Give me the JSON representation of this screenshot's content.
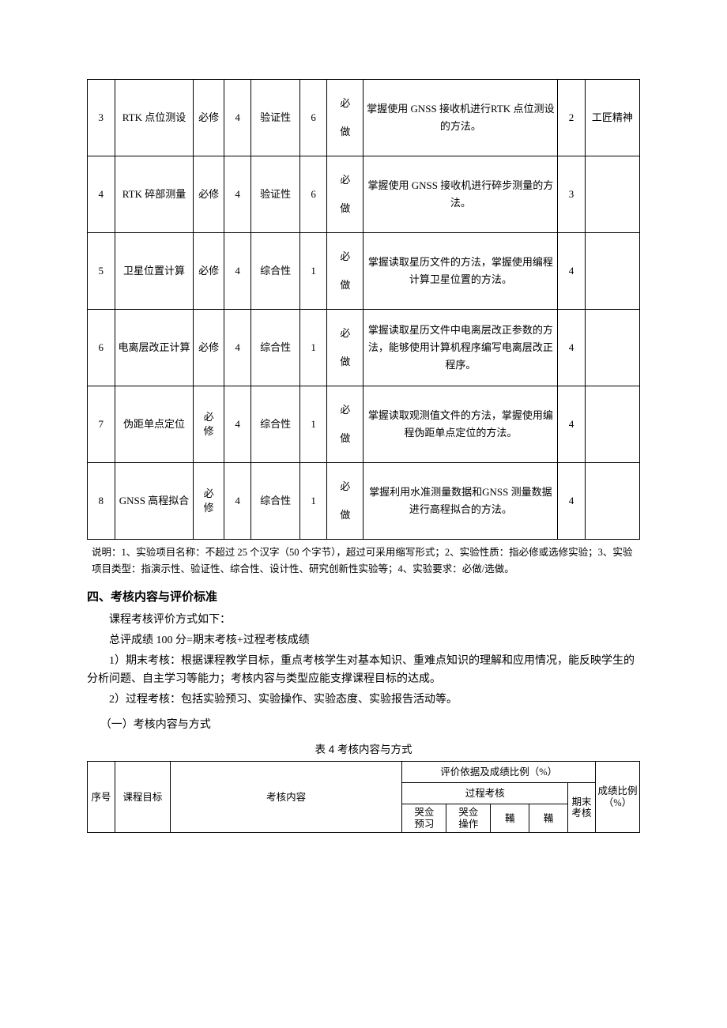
{
  "table1": {
    "rows": [
      {
        "no": "3",
        "name": "RTK 点位测设",
        "nature": "必修",
        "cnt": "4",
        "type": "验证性",
        "hrs": "6",
        "req": "必\n\n做",
        "desc": "掌握使用 GNSS 接收机进行RTK 点位测设的方法。",
        "goal": "2",
        "extra": "工匠精神"
      },
      {
        "no": "4",
        "name": "RTK 碎部测量",
        "nature": "必修",
        "cnt": "4",
        "type": "验证性",
        "hrs": "6",
        "req": "必\n\n做",
        "desc": "掌握使用 GNSS 接收机进行碎步测量的方法。",
        "goal": "3",
        "extra": ""
      },
      {
        "no": "5",
        "name": "卫星位置计算",
        "nature": "必修",
        "cnt": "4",
        "type": "综合性",
        "hrs": "1",
        "req": "必\n\n做",
        "desc": "掌握读取星历文件的方法，掌握使用编程计算卫星位置的方法。",
        "goal": "4",
        "extra": ""
      },
      {
        "no": "6",
        "name": "电离层改正计算",
        "nature": "必修",
        "cnt": "4",
        "type": "综合性",
        "hrs": "1",
        "req": "必\n\n做",
        "desc": "掌握读取星历文件中电离层改正参数的方法，能够使用计算机程序编写电离层改正程序。",
        "goal": "4",
        "extra": ""
      },
      {
        "no": "7",
        "name": "伪距单点定位",
        "nature": "必\n修",
        "cnt": "4",
        "type": "综合性",
        "hrs": "1",
        "req": "必\n\n做",
        "desc": "掌握读取观测值文件的方法，掌握使用编程伪距单点定位的方法。",
        "goal": "4",
        "extra": ""
      },
      {
        "no": "8",
        "name": "GNSS 高程拟合",
        "nature": "必\n修",
        "cnt": "4",
        "type": "综合性",
        "hrs": "1",
        "req": "必\n\n做",
        "desc": "掌握利用水准测量数据和GNSS 测量数据进行高程拟合的方法。",
        "goal": "4",
        "extra": ""
      }
    ]
  },
  "note_text": "说明：1、实验项目名称：不超过 25 个汉字（50 个字节），超过可采用缩写形式；2、实验性质：指必修或选修实验；3、实验项目类型：指演示性、验证性、综合性、设计性、研究创新性实验等；4、实验要求：必做/选做。",
  "section4_title": "四、考核内容与评价标准",
  "p1": "课程考核评价方式如下：",
  "p2": "总评成绩 100 分=期末考核+过程考核成绩",
  "p3": "1）期末考核：根据课程教学目标，重点考核学生对基本知识、重难点知识的理解和应用情况，能反映学生的分析问题、自主学习等能力；考核内容与类型应能支撑课程目标的达成。",
  "p4": "2）过程考核：包括实验预习、实验操作、实验态度、实验报告活动等。",
  "subsec": "（一）考核内容与方式",
  "caption2": "表 4 考核内容与方式",
  "table2": {
    "h_no": "序号",
    "h_goal": "课程目标",
    "h_content": "考核内容",
    "h_eval": "评价依据及成绩比例（%）",
    "h_process": "过程考核",
    "h_final": "期末考核",
    "h_ratio": "成绩比例（%）",
    "h_c1": "哭佥\n预习",
    "h_c2": "哭佥\n操作",
    "h_c3": "鞴",
    "h_c4": "鞴"
  }
}
